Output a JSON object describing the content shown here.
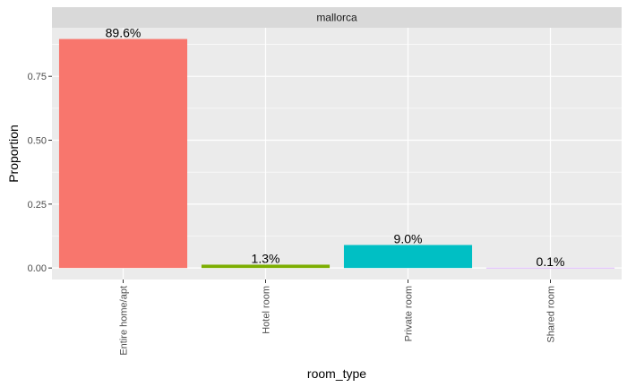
{
  "chart_data": {
    "type": "bar",
    "facet_label": "mallorca",
    "categories": [
      "Entire home/apt",
      "Hotel room",
      "Private room",
      "Shared room"
    ],
    "values": [
      0.896,
      0.013,
      0.09,
      0.001
    ],
    "data_labels": [
      "89.6%",
      "1.3%",
      "9.0%",
      "0.1%"
    ],
    "colors": [
      "#F8766D",
      "#7CAE00",
      "#00BFC4",
      "#C77CFF"
    ],
    "xlabel": "room_type",
    "ylabel": "Proportion",
    "ylim": [
      -0.045,
      0.94
    ],
    "yticks": [
      0,
      0.25,
      0.5,
      0.75
    ],
    "ytick_labels": [
      "0.00",
      "0.25",
      "0.50",
      "0.75"
    ],
    "grid": true,
    "panel_background": "#EBEBEB",
    "strip_background": "#D9D9D9"
  }
}
